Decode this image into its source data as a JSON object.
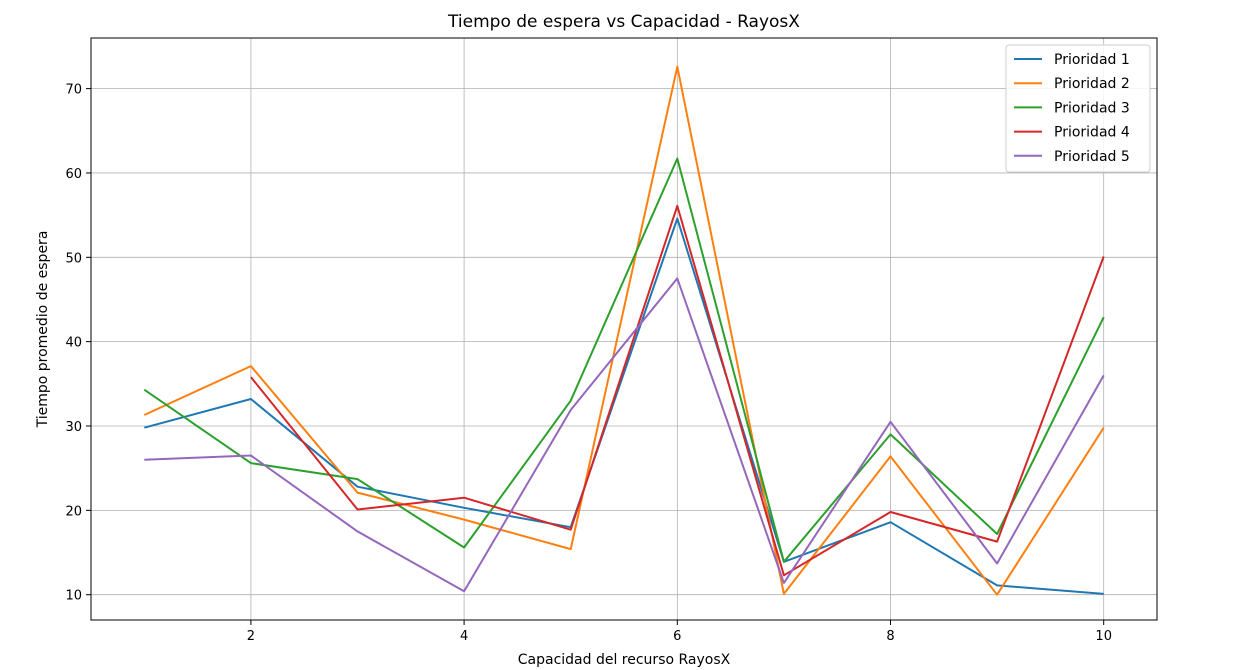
{
  "chart_data": {
    "type": "line",
    "title": "Tiempo de espera vs Capacidad - RayosX",
    "xlabel": "Capacidad del recurso RayosX",
    "ylabel": "Tiempo promedio de espera",
    "x": [
      1,
      2,
      3,
      4,
      5,
      6,
      7,
      8,
      9,
      10
    ],
    "xlim": [
      0.5,
      10.5
    ],
    "ylim": [
      7,
      76
    ],
    "xticks": [
      "2",
      "4",
      "6",
      "8",
      "10"
    ],
    "yticks": [
      "10",
      "20",
      "30",
      "40",
      "50",
      "60",
      "70"
    ],
    "grid": true,
    "legend_position": "top-right",
    "series": [
      {
        "name": "Prioridad 1",
        "color": "#1f77b4",
        "values": [
          29.8,
          33.2,
          22.8,
          20.3,
          18.0,
          54.6,
          13.9,
          18.6,
          11.1,
          10.1
        ]
      },
      {
        "name": "Prioridad 2",
        "color": "#ff7f0e",
        "values": [
          31.3,
          37.1,
          22.1,
          18.9,
          15.4,
          72.6,
          10.1,
          26.4,
          10.0,
          29.8
        ]
      },
      {
        "name": "Prioridad 3",
        "color": "#2ca02c",
        "values": [
          34.3,
          25.6,
          23.7,
          15.6,
          33.0,
          61.7,
          13.9,
          29.0,
          17.2,
          42.9
        ]
      },
      {
        "name": "Prioridad 4",
        "color": "#d62728",
        "values": [
          null,
          35.8,
          20.1,
          21.5,
          17.7,
          56.1,
          12.3,
          19.8,
          16.3,
          50.1
        ]
      },
      {
        "name": "Prioridad 5",
        "color": "#9467bd",
        "values": [
          26.0,
          26.5,
          17.5,
          10.4,
          31.9,
          47.5,
          11.4,
          30.5,
          13.7,
          36.0
        ]
      }
    ]
  }
}
